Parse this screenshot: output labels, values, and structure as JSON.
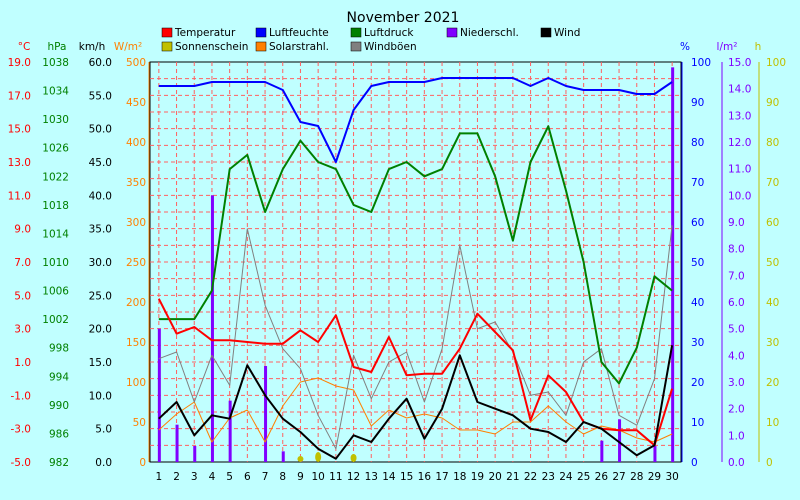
{
  "chart_data": {
    "type": "line",
    "title": "November 2021",
    "x": [
      1,
      2,
      3,
      4,
      5,
      6,
      7,
      8,
      9,
      10,
      11,
      12,
      13,
      14,
      15,
      16,
      17,
      18,
      19,
      20,
      21,
      22,
      23,
      24,
      25,
      26,
      27,
      28,
      29,
      30
    ],
    "grid": true,
    "legend_position": "top",
    "axes": [
      {
        "id": "temp",
        "label": "°C",
        "color": "#ff0000",
        "min": -5.0,
        "max": 19.0,
        "ticks": [
          "-5.0",
          "-3.0",
          "-1.0",
          "1.0",
          "3.0",
          "5.0",
          "7.0",
          "9.0",
          "11.0",
          "13.0",
          "15.0",
          "17.0",
          "19.0"
        ]
      },
      {
        "id": "hpa",
        "label": "hPa",
        "color": "#008000",
        "min": 982,
        "max": 1038,
        "ticks": [
          "982",
          "986",
          "990",
          "994",
          "998",
          "1002",
          "1006",
          "1010",
          "1014",
          "1018",
          "1022",
          "1026",
          "1030",
          "1034",
          "1038"
        ]
      },
      {
        "id": "kmh",
        "label": "km/h",
        "color": "#000000",
        "min": 0,
        "max": 60,
        "ticks": [
          "0.0",
          "5.0",
          "10.0",
          "15.0",
          "20.0",
          "25.0",
          "30.0",
          "35.0",
          "40.0",
          "45.0",
          "50.0",
          "55.0",
          "60.0"
        ]
      },
      {
        "id": "wm2",
        "label": "W/m²",
        "color": "#ff8000",
        "min": 0,
        "max": 500,
        "ticks": [
          "0",
          "50",
          "100",
          "150",
          "200",
          "250",
          "300",
          "350",
          "400",
          "450",
          "500"
        ]
      },
      {
        "id": "pct",
        "label": "%",
        "color": "#0000ff",
        "min": 0,
        "max": 100,
        "ticks": [
          "0",
          "10",
          "20",
          "30",
          "40",
          "50",
          "60",
          "70",
          "80",
          "90",
          "100"
        ]
      },
      {
        "id": "lm2",
        "label": "l/m²",
        "color": "#8000ff",
        "min": 0,
        "max": 15,
        "ticks": [
          "0.0",
          "1.0",
          "2.0",
          "3.0",
          "4.0",
          "5.0",
          "6.0",
          "7.0",
          "8.0",
          "9.0",
          "10.0",
          "11.0",
          "12.0",
          "13.0",
          "14.0",
          "15.0"
        ]
      },
      {
        "id": "h",
        "label": "h",
        "color": "#c0c000",
        "min": 0,
        "max": 100,
        "ticks": [
          "0",
          "10",
          "20",
          "30",
          "40",
          "50",
          "60",
          "70",
          "80",
          "90",
          "100"
        ]
      }
    ],
    "series": [
      {
        "name": "Temperatur",
        "axis": "temp",
        "color": "#ff0000",
        "type": "line",
        "width": 2,
        "values": [
          4.8,
          2.7,
          3.1,
          2.3,
          2.3,
          2.2,
          2.1,
          2.1,
          2.9,
          2.2,
          3.8,
          0.7,
          0.4,
          2.5,
          0.2,
          0.3,
          0.3,
          1.8,
          3.9,
          2.8,
          1.7,
          -2.5,
          0.2,
          -0.8,
          -2.6,
          -3.0,
          -3.1,
          -3.1,
          -4.0,
          -0.6
        ]
      },
      {
        "name": "Luftfeuchte",
        "axis": "pct",
        "color": "#0000ff",
        "type": "line",
        "width": 2,
        "values": [
          94,
          94,
          94,
          95,
          95,
          95,
          95,
          93,
          85,
          84,
          75,
          88,
          94,
          95,
          95,
          95,
          96,
          96,
          96,
          96,
          96,
          94,
          96,
          94,
          93,
          93,
          93,
          92,
          92,
          95
        ]
      },
      {
        "name": "Luftdruck",
        "axis": "hpa",
        "color": "#008000",
        "type": "line",
        "width": 2,
        "values": [
          1002,
          1002,
          1002,
          1006,
          1023,
          1025,
          1017,
          1023,
          1027,
          1024,
          1023,
          1018,
          1017,
          1023,
          1024,
          1022,
          1023,
          1028,
          1028,
          1022,
          1013,
          1024,
          1029,
          1020,
          1010,
          996,
          993,
          998,
          1008,
          1006
        ]
      },
      {
        "name": "Niederschl.",
        "axis": "lm2",
        "color": "#8000ff",
        "type": "bar",
        "values": [
          5.0,
          1.4,
          0.6,
          10.0,
          2.3,
          0.0,
          3.6,
          0.4,
          0.1,
          0.0,
          0.0,
          0.0,
          0.0,
          0.0,
          0.0,
          0.0,
          0.0,
          0.0,
          0.0,
          0.0,
          0.0,
          0.0,
          0.0,
          0.0,
          0.0,
          0.8,
          1.6,
          0.0,
          0.6,
          14.8
        ]
      },
      {
        "name": "Wind",
        "axis": "kmh",
        "color": "#000000",
        "type": "line",
        "width": 2,
        "values": [
          6.5,
          9.0,
          4.0,
          7.0,
          6.5,
          14.5,
          10.0,
          6.5,
          4.5,
          2.0,
          0.5,
          4.0,
          3.0,
          6.5,
          9.5,
          3.5,
          8.0,
          16.0,
          9.0,
          8.0,
          7.0,
          5.0,
          4.5,
          3.0,
          6.0,
          5.0,
          3.0,
          1.0,
          2.5,
          17.5
        ]
      },
      {
        "name": "Sonnenschein",
        "axis": "h",
        "color": "#c0c000",
        "type": "bar",
        "values": [
          0,
          0,
          0,
          0,
          0,
          0,
          0,
          0,
          1.5,
          2.5,
          0,
          2.0,
          0,
          0,
          0,
          0,
          0,
          0,
          0,
          0,
          0,
          0,
          0,
          0,
          0,
          0,
          0,
          0,
          0,
          0
        ]
      },
      {
        "name": "Solarstrahl.",
        "axis": "wm2",
        "color": "#ff8000",
        "type": "line",
        "width": 1,
        "values": [
          40,
          60,
          75,
          25,
          55,
          65,
          25,
          70,
          100,
          105,
          95,
          90,
          45,
          65,
          55,
          60,
          55,
          40,
          40,
          35,
          50,
          50,
          70,
          50,
          35,
          45,
          40,
          30,
          25,
          35
        ]
      },
      {
        "name": "Windböen",
        "axis": "kmh",
        "color": "#808080",
        "type": "line",
        "width": 1,
        "values": [
          15.5,
          16.5,
          9.0,
          16.0,
          11.5,
          35.0,
          23.5,
          17.0,
          14.0,
          7.0,
          2.0,
          16.0,
          9.5,
          15.0,
          16.5,
          9.0,
          17.0,
          32.5,
          20.0,
          21.0,
          16.5,
          10.0,
          10.5,
          7.0,
          15.0,
          17.0,
          7.0,
          5.5,
          12.5,
          35.5
        ]
      }
    ]
  }
}
